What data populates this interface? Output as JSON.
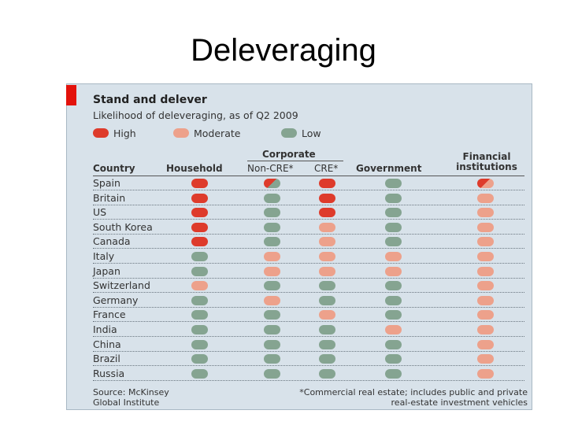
{
  "slide": {
    "title": "Deleveraging"
  },
  "chart_data": {
    "type": "table",
    "title": "Stand and delever",
    "subtitle": "Likelihood of deleveraging, as of Q2 2009",
    "legend": [
      {
        "label": "High",
        "key": "H",
        "color": "#de3b2b"
      },
      {
        "label": "Moderate",
        "key": "M",
        "color": "#eda18b"
      },
      {
        "label": "Low",
        "key": "L",
        "color": "#85a491"
      }
    ],
    "headers": {
      "country": "Country",
      "household": "Household",
      "corporate": "Corporate",
      "non_cre": "Non-CRE*",
      "cre": "CRE*",
      "government": "Government",
      "financial": "Financial institutions"
    },
    "columns": [
      "Household",
      "Non-CRE*",
      "CRE*",
      "Government",
      "Financial institutions"
    ],
    "rows": [
      {
        "country": "Spain",
        "values": [
          "H",
          "HL",
          "H",
          "L",
          "HM"
        ]
      },
      {
        "country": "Britain",
        "values": [
          "H",
          "L",
          "H",
          "L",
          "M"
        ]
      },
      {
        "country": "US",
        "values": [
          "H",
          "L",
          "H",
          "L",
          "M"
        ]
      },
      {
        "country": "South Korea",
        "values": [
          "H",
          "L",
          "M",
          "L",
          "M"
        ]
      },
      {
        "country": "Canada",
        "values": [
          "H",
          "L",
          "M",
          "L",
          "M"
        ]
      },
      {
        "country": "Italy",
        "values": [
          "L",
          "M",
          "M",
          "M",
          "M"
        ]
      },
      {
        "country": "Japan",
        "values": [
          "L",
          "M",
          "M",
          "M",
          "M"
        ]
      },
      {
        "country": "Switzerland",
        "values": [
          "M",
          "L",
          "L",
          "L",
          "M"
        ]
      },
      {
        "country": "Germany",
        "values": [
          "L",
          "M",
          "L",
          "L",
          "M"
        ]
      },
      {
        "country": "France",
        "values": [
          "L",
          "L",
          "M",
          "L",
          "M"
        ]
      },
      {
        "country": "India",
        "values": [
          "L",
          "L",
          "L",
          "M",
          "M"
        ]
      },
      {
        "country": "China",
        "values": [
          "L",
          "L",
          "L",
          "L",
          "M"
        ]
      },
      {
        "country": "Brazil",
        "values": [
          "L",
          "L",
          "L",
          "L",
          "M"
        ]
      },
      {
        "country": "Russia",
        "values": [
          "L",
          "L",
          "L",
          "L",
          "M"
        ]
      }
    ],
    "source": "Source: McKinsey Global Institute",
    "footnote": "*Commercial real estate; includes public and private real-estate investment vehicles"
  }
}
